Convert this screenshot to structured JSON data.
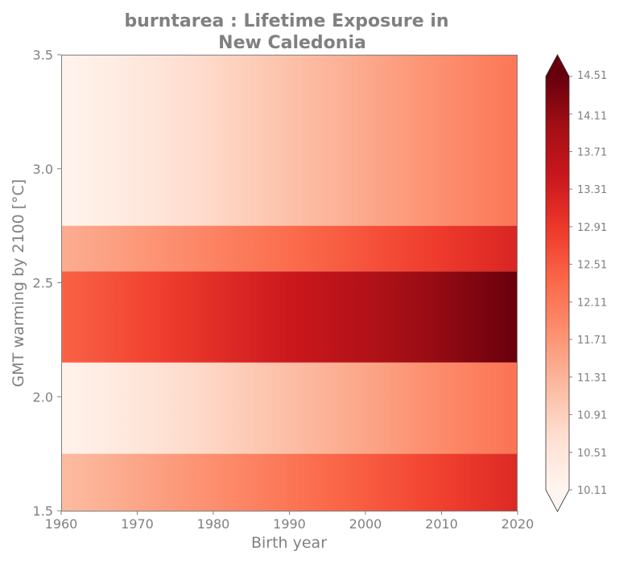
{
  "chart_data": {
    "type": "heatmap",
    "title_line1": "burntarea : Lifetime Exposure in",
    "title_line2": "New Caledonia",
    "xlabel": "Birth year",
    "ylabel": "GMT warming by 2100 [°C]",
    "xlim": [
      1960,
      2020
    ],
    "ylim": [
      1.5,
      3.5
    ],
    "x_ticks": [
      1960,
      1970,
      1980,
      1990,
      2000,
      2010,
      2020
    ],
    "y_ticks": [
      "1.5",
      "2.0",
      "2.5",
      "3.0",
      "3.5"
    ],
    "colormap": "Reds",
    "colorbar_extend": "both",
    "vmin": 10.11,
    "vmax": 14.51,
    "colorbar_ticks": [
      "10.11",
      "10.51",
      "10.91",
      "11.31",
      "11.71",
      "12.11",
      "12.51",
      "12.91",
      "13.31",
      "13.71",
      "14.11",
      "14.51"
    ],
    "bands": [
      {
        "y_range": [
          1.5,
          1.75
        ],
        "start_value": 11.2,
        "end_value": 13.15
      },
      {
        "y_range": [
          1.75,
          2.15
        ],
        "start_value": 10.2,
        "end_value": 12.2
      },
      {
        "y_range": [
          2.15,
          2.55
        ],
        "start_value": 12.4,
        "end_value": 14.5
      },
      {
        "y_range": [
          2.55,
          2.75
        ],
        "start_value": 11.4,
        "end_value": 13.2
      },
      {
        "y_range": [
          2.75,
          3.5
        ],
        "start_value": 10.15,
        "end_value": 12.15
      }
    ]
  }
}
